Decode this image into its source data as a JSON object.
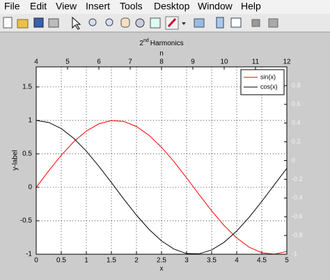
{
  "menu": [
    "File",
    "Edit",
    "View",
    "Insert",
    "Tools",
    "Desktop",
    "Window",
    "Help"
  ],
  "chart_data": {
    "type": "line",
    "title_base": "2",
    "title_sup": "nd",
    "title_rest": "Harmonics",
    "xlabel": "x",
    "ylabel": "y-label",
    "x2label": "n",
    "x": [
      0,
      0.25,
      0.5,
      0.75,
      1,
      1.25,
      1.5,
      1.75,
      2,
      2.25,
      2.5,
      2.75,
      3,
      3.25,
      3.5,
      3.75,
      4,
      4.25,
      4.5,
      4.75,
      5
    ],
    "series": [
      {
        "name": "sin(x)",
        "color": "#ff0000",
        "values": [
          0,
          0.247,
          0.479,
          0.682,
          0.841,
          0.949,
          0.997,
          0.984,
          0.909,
          0.778,
          0.598,
          0.382,
          0.141,
          -0.108,
          -0.351,
          -0.572,
          -0.757,
          -0.895,
          -0.978,
          -0.999,
          -0.959
        ]
      },
      {
        "name": "cos(x)",
        "color": "#000000",
        "values": [
          1,
          0.969,
          0.878,
          0.732,
          0.54,
          0.315,
          0.071,
          -0.178,
          -0.416,
          -0.628,
          -0.801,
          -0.924,
          -0.99,
          -0.994,
          -0.936,
          -0.821,
          -0.654,
          -0.446,
          -0.211,
          0.038,
          0.284
        ]
      }
    ],
    "xlim": [
      0,
      5
    ],
    "xticks": [
      0,
      0.5,
      1,
      1.5,
      2,
      2.5,
      3,
      3.5,
      4,
      4.5,
      5
    ],
    "ylim": [
      -1,
      1.8
    ],
    "yticks": [
      -1,
      -0.5,
      0,
      0.5,
      1,
      1.5
    ],
    "x2lim": [
      4,
      12
    ],
    "x2ticks": [
      4,
      5,
      6,
      7,
      8,
      9,
      10,
      11,
      12
    ],
    "y2lim": [
      -1,
      1
    ],
    "y2ticks": [
      -1,
      -0.8,
      -0.6,
      -0.4,
      -0.2,
      0,
      0.2,
      0.4,
      0.6,
      0.8
    ],
    "grid": true,
    "legend": "upper right"
  }
}
